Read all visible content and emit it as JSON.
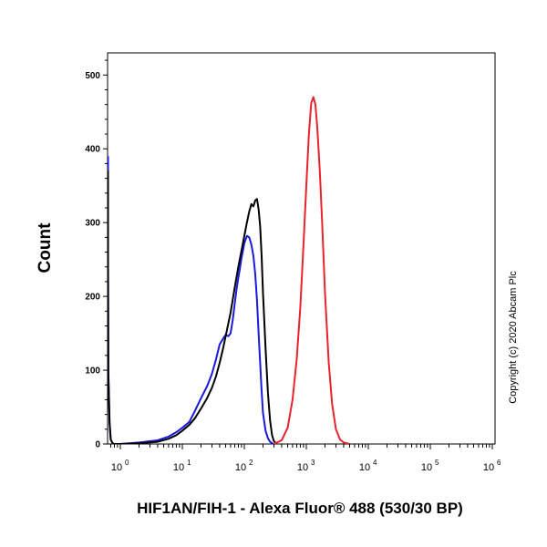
{
  "chart_data": {
    "type": "line",
    "title": "",
    "xlabel": "HIF1AN/FIH-1 - Alexa Fluor® 488 (530/30 BP)",
    "ylabel": "Count",
    "xscale": "log",
    "xlim": [
      0.6,
      1000000
    ],
    "ylim": [
      0,
      530
    ],
    "y_ticks": [
      0,
      100,
      200,
      300,
      400,
      500
    ],
    "x_ticks": [
      {
        "value": 1,
        "base": "10",
        "exp": "0"
      },
      {
        "value": 10,
        "base": "10",
        "exp": "1"
      },
      {
        "value": 100,
        "base": "10",
        "exp": "2"
      },
      {
        "value": 1000,
        "base": "10",
        "exp": "3"
      },
      {
        "value": 10000,
        "base": "10",
        "exp": "4"
      },
      {
        "value": 100000,
        "base": "10",
        "exp": "5"
      },
      {
        "value": 1000000,
        "base": "10",
        "exp": "6"
      }
    ],
    "grid": false,
    "legend": "none",
    "annotations": [
      "Copyright (c) 2020 Abcam Plc"
    ],
    "series": [
      {
        "color": "#1a1adc",
        "x": [
          0.6,
          0.62,
          0.64,
          0.67,
          0.7,
          0.75,
          0.8,
          0.9,
          1,
          2,
          4,
          6,
          8,
          10,
          13,
          16,
          20,
          25,
          30,
          35,
          40,
          45,
          50,
          55,
          60,
          65,
          70,
          75,
          80,
          85,
          90,
          95,
          100,
          110,
          120,
          130,
          140,
          150,
          160,
          170,
          180,
          190,
          200,
          220,
          240,
          260,
          280,
          300
        ],
        "y": [
          390,
          250,
          100,
          30,
          6,
          1,
          0,
          0,
          0,
          2,
          5,
          10,
          16,
          22,
          30,
          45,
          62,
          78,
          95,
          115,
          135,
          142,
          148,
          146,
          150,
          168,
          190,
          210,
          225,
          238,
          252,
          262,
          272,
          282,
          280,
          270,
          255,
          230,
          195,
          150,
          110,
          72,
          42,
          18,
          8,
          3,
          1,
          0
        ]
      },
      {
        "color": "#000000",
        "x": [
          0.6,
          0.62,
          0.64,
          0.67,
          0.7,
          0.75,
          0.8,
          0.9,
          1,
          2,
          4,
          6,
          8,
          10,
          13,
          16,
          20,
          25,
          30,
          35,
          40,
          45,
          50,
          60,
          70,
          80,
          90,
          100,
          110,
          120,
          130,
          140,
          150,
          160,
          170,
          180,
          190,
          200,
          220,
          240,
          260,
          280,
          300,
          330
        ],
        "y": [
          370,
          240,
          95,
          28,
          6,
          1,
          0,
          0,
          0,
          1,
          3,
          7,
          12,
          18,
          26,
          35,
          48,
          62,
          76,
          92,
          110,
          128,
          146,
          178,
          212,
          240,
          262,
          282,
          300,
          315,
          325,
          322,
          330,
          332,
          318,
          295,
          255,
          205,
          130,
          70,
          32,
          12,
          4,
          0
        ]
      },
      {
        "color": "#e8232e",
        "x": [
          300,
          400,
          500,
          600,
          700,
          800,
          900,
          1000,
          1100,
          1200,
          1300,
          1400,
          1500,
          1650,
          1800,
          2000,
          2300,
          2600,
          3000,
          3500,
          4000,
          5000
        ],
        "y": [
          0,
          5,
          22,
          60,
          115,
          185,
          270,
          350,
          420,
          462,
          470,
          460,
          430,
          370,
          300,
          205,
          110,
          55,
          20,
          6,
          2,
          0
        ]
      }
    ]
  }
}
